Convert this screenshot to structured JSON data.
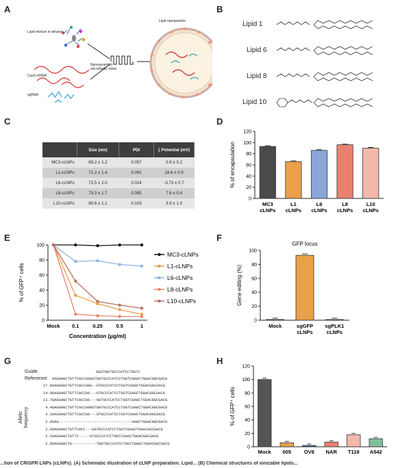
{
  "panels": {
    "A": "A",
    "B": "B",
    "C": "C",
    "D": "D",
    "E": "E",
    "F": "F",
    "G": "G",
    "H": "H"
  },
  "panelA": {
    "lipid_mixture": "Lipid mixture in ethanol",
    "cas9_mrna": "Cas9 mRNA",
    "sgrna": "sgRNA",
    "mixer": "Nanoassemblr microfluidic mixer",
    "nanoparticle": "Lipid nanoparticle"
  },
  "panelB": {
    "lipids": [
      "Lipid 1",
      "Lipid 6",
      "Lipid 8",
      "Lipid 10"
    ]
  },
  "panelC": {
    "headers": [
      "",
      "Size (nm)",
      "PDI",
      "ζ Potential (mV)"
    ],
    "rows": [
      [
        "MC3-cLNPs",
        "89.2 ± 1.2",
        "0.057",
        "0.9 ± 0.2"
      ],
      [
        "L1-cLNPs",
        "71.2 ± 1.4",
        "0.091",
        "18.6 ± 0.9"
      ],
      [
        "L6-cLNPs",
        "72.5 ± 2.0",
        "0.024",
        "-3.73 ± 0.7"
      ],
      [
        "L8-cLNPs",
        "79.3 ± 1.7",
        "0.085",
        "7.6 ± 0.4"
      ],
      [
        "L10-cLNPs",
        "80.6 ± 1.1",
        "0.103",
        "3.9 ± 1.0"
      ]
    ]
  },
  "chart_data": [
    {
      "id": "D",
      "type": "bar",
      "ylabel": "% of encapsulation",
      "ylim": [
        0,
        120
      ],
      "yticks": [
        0,
        20,
        40,
        60,
        80,
        100,
        120
      ],
      "categories": [
        [
          "MC3",
          "cLNPs"
        ],
        [
          "L1",
          "cLNPs"
        ],
        [
          "L6",
          "cLNPs"
        ],
        [
          "L8",
          "cLNPs"
        ],
        [
          "L10",
          "cLNPs"
        ]
      ],
      "values": [
        93,
        66,
        86,
        96,
        90
      ],
      "colors": [
        "#4a4a4a",
        "#e8a04a",
        "#8aa6d8",
        "#e8826e",
        "#f2b8aa"
      ]
    },
    {
      "id": "E",
      "type": "line",
      "ylabel": "% of GFP⁺ cells",
      "xlabel": "Concentration (μg/ml)",
      "ylim": [
        0,
        100
      ],
      "yticks": [
        0,
        20,
        40,
        60,
        80,
        100
      ],
      "x": [
        "Mock",
        "0.1",
        "0.25",
        "0.5",
        "1"
      ],
      "series": [
        {
          "name": "MC3-cLNPs",
          "color": "#111111",
          "values": [
            100,
            100,
            99,
            100,
            100
          ]
        },
        {
          "name": "L1-cLNPs",
          "color": "#e8a04a",
          "values": [
            100,
            33,
            22,
            14,
            8
          ]
        },
        {
          "name": "L6-cLNPs",
          "color": "#8fb4dc",
          "values": [
            100,
            78,
            79,
            74,
            72
          ]
        },
        {
          "name": "L8-cLNPs",
          "color": "#e8826e",
          "values": [
            100,
            8,
            6,
            5,
            5
          ]
        },
        {
          "name": "L10-cLNPs",
          "color": "#b87060",
          "values": [
            100,
            52,
            25,
            20,
            16
          ]
        }
      ]
    },
    {
      "id": "F",
      "type": "bar",
      "title": "GFP locus",
      "ylabel": "Gene editing (%)",
      "ylim": [
        0,
        100
      ],
      "yticks": [
        0,
        20,
        40,
        60,
        80,
        100
      ],
      "categories": [
        [
          "Mock"
        ],
        [
          "sgGFP",
          "cLNPs"
        ],
        [
          "sgPLK1",
          "cLNPs"
        ]
      ],
      "values": [
        1,
        93,
        1
      ],
      "colors": [
        "#333333",
        "#e8a04a",
        "#3a64a8"
      ]
    },
    {
      "id": "H",
      "type": "bar",
      "ylabel": "% of GFP⁺ cells",
      "ylim": [
        0,
        120
      ],
      "yticks": [
        0,
        20,
        40,
        60,
        80,
        100,
        120
      ],
      "categories": [
        "Mock",
        "005",
        "OV8",
        "NAR",
        "T118",
        "A542"
      ],
      "values": [
        100,
        6,
        2,
        7,
        18,
        12
      ],
      "colors": [
        "#555555",
        "#e8a04a",
        "#3a64a8",
        "#e8826e",
        "#f2b8aa",
        "#7fbf9a"
      ]
    }
  ],
  "panelG": {
    "guide_label": "Guide:",
    "reference_label": "Reference:",
    "guide_seq": "GGGTGGTGCCCATCCTGGTC",
    "reference_seq": "GAGGAGCTGTTCACCGGGGTGGTGCCCATCCTGGTCGAGCTGGACGGCGACG",
    "allelic_label": "Allelic frequency",
    "rows": [
      {
        "freq": "17.8",
        "seq": "GAGGAGCTGTTCACCGGG--GTGCCCATCCTGGTCGAGCTGGACGGCGACG"
      },
      {
        "freq": "14.0",
        "seq": "GAGGAGCTGTTCACCGG---GTGCCCATCCTGGTCGAGCTGGACGGCGACG"
      },
      {
        "freq": "11.7",
        "seq": "GAGGAGCTGTTCACCGG---GGTGCCCATCCTGGTCGAGCTGGACGGCGACG"
      },
      {
        "freq": "4.4",
        "seq": "GAGGAGCTGTTCACCGGGGTGGTGCCCATCCTGGTCGAGCTGGACGGCGACG"
      },
      {
        "freq": "3.2",
        "seq": "GAGGAGCTGTTCACCGG---GTGCCCATCCTGGTCGAGCTGGACGGCGACG"
      },
      {
        "freq": "2.8",
        "seq": "GAG---------------------------------GAGCTGGACGGCGACG"
      },
      {
        "freq": "2.6",
        "seq": "GAGGAGCTGTTCACC---GGTGCCCATCCTGGTCGAGCTGGACGGCGACG"
      },
      {
        "freq": "2.2",
        "seq": "GAGGAGCTGTTC-----GTGCCCATCCTGGTCGAGCTGGACGGCGACG"
      },
      {
        "freq": "2.0",
        "seq": "GAGGAGCTG-----------TGGTGCCCATCCTGGTCGAGCTGGACGGCGACG"
      }
    ]
  },
  "caption": "...tion of CRISPR LNPs (cLNPs). (A) Schematic illustration of cLNP preparation. Lipid... (B) Chemical structures of ionizable lipids..."
}
